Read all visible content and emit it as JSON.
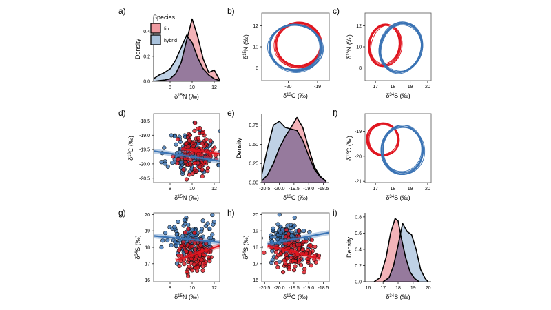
{
  "colors": {
    "fin": "#e0151f",
    "hybrid": "#3a73b4",
    "fin_fill": "#ef9aa0",
    "hybrid_fill": "#a9c2dc",
    "overlap": "#8f6f93"
  },
  "legend": {
    "title": "Species",
    "items": [
      {
        "key": "fin",
        "label": "fin"
      },
      {
        "key": "hybrid",
        "label": "hybrid"
      }
    ]
  },
  "panels": {
    "a": {
      "label": "a)",
      "xlabel": [
        "δ",
        "15",
        "N (‰)"
      ],
      "ylabel": "Density",
      "xticks": [
        "8",
        "10",
        "12"
      ],
      "yticks": [
        "0.0",
        "0.2",
        "0.4"
      ]
    },
    "b": {
      "label": "b)",
      "xlabel": [
        "δ",
        "13",
        "C (‰)"
      ],
      "ylabel": [
        "δ",
        "15",
        "N (‰)"
      ],
      "xticks": [
        "-20",
        "-19"
      ],
      "yticks": [
        "8",
        "10",
        "12"
      ]
    },
    "c": {
      "label": "c)",
      "xlabel": [
        "δ",
        "34",
        "S (‰)"
      ],
      "ylabel": [
        "δ",
        "15",
        "N (‰)"
      ],
      "xticks": [
        "17",
        "18",
        "19",
        "20"
      ],
      "yticks": [
        "8",
        "10",
        "12"
      ]
    },
    "d": {
      "label": "d)",
      "xlabel": [
        "δ",
        "15",
        "N (‰)"
      ],
      "ylabel": [
        "δ",
        "13",
        "C (‰)"
      ],
      "xticks": [
        "8",
        "10",
        "12"
      ],
      "yticks": [
        "-18.5",
        "-19.0",
        "-19.5",
        "-20.0",
        "-20.5"
      ]
    },
    "e": {
      "label": "e)",
      "xlabel": [
        "δ",
        "13",
        "C (‰)"
      ],
      "ylabel": "Density",
      "xticks": [
        "-20.5",
        "-20.0",
        "-19.5",
        "-19.0",
        "-18.5"
      ],
      "yticks": [
        "0.00",
        "0.25",
        "0.50",
        "0.75"
      ]
    },
    "f": {
      "label": "f)",
      "xlabel": [
        "δ",
        "34",
        "S (‰)"
      ],
      "ylabel": [
        "δ",
        "13",
        "C (‰)"
      ],
      "xticks": [
        "17",
        "18",
        "19",
        "20"
      ],
      "yticks": [
        "-19",
        "-20",
        "-21"
      ]
    },
    "g": {
      "label": "g)",
      "xlabel": [
        "δ",
        "15",
        "N (‰)"
      ],
      "ylabel": [
        "δ",
        "34",
        "S (‰)"
      ],
      "xticks": [
        "8",
        "10",
        "12"
      ],
      "yticks": [
        "16",
        "17",
        "18",
        "19",
        "20"
      ]
    },
    "h": {
      "label": "h)",
      "xlabel": [
        "δ",
        "13",
        "C (‰)"
      ],
      "ylabel": [
        "δ",
        "34",
        "S (‰)"
      ],
      "xticks": [
        "-20.5",
        "-20.0",
        "-19.5",
        "-19.0",
        "-18.5"
      ],
      "yticks": [
        "16",
        "17",
        "18",
        "19",
        "20"
      ]
    },
    "i": {
      "label": "i)",
      "xlabel": [
        "δ",
        "34",
        "S (‰)"
      ],
      "ylabel": "Density",
      "xticks": [
        "16",
        "17",
        "18",
        "19",
        "20"
      ],
      "yticks": [
        "0.0",
        "0.2",
        "0.4",
        "0.6",
        "0.8"
      ]
    }
  },
  "chart_data": [
    {
      "panel": "a",
      "type": "area",
      "xlim": [
        6.5,
        12.5
      ],
      "ylim": [
        0,
        0.52
      ],
      "series": [
        {
          "name": "fin",
          "x": [
            6.5,
            7,
            7.5,
            8,
            8.5,
            9,
            9.5,
            10,
            10.5,
            11,
            11.5,
            12,
            12.5
          ],
          "values": [
            0,
            0.005,
            0.01,
            0.02,
            0.06,
            0.15,
            0.33,
            0.5,
            0.36,
            0.18,
            0.07,
            0.09,
            0.01
          ]
        },
        {
          "name": "hybrid",
          "x": [
            6.5,
            7,
            7.5,
            8,
            8.5,
            9,
            9.5,
            10,
            10.5,
            11,
            11.5,
            12,
            12.5
          ],
          "values": [
            0.02,
            0.05,
            0.07,
            0.1,
            0.17,
            0.27,
            0.37,
            0.31,
            0.19,
            0.1,
            0.05,
            0.02,
            0.005
          ]
        }
      ]
    },
    {
      "panel": "b",
      "type": "ellipse",
      "xlim": [
        -20.9,
        -18.6
      ],
      "ylim": [
        6.8,
        13.2
      ],
      "series": [
        {
          "name": "fin",
          "center": [
            -19.65,
            10.2
          ],
          "rx": 0.8,
          "ry": 2.1,
          "tilt": -8
        },
        {
          "name": "hybrid",
          "center": [
            -19.75,
            9.9
          ],
          "rx": 0.9,
          "ry": 2.2,
          "tilt": 5
        }
      ]
    },
    {
      "panel": "c",
      "type": "ellipse",
      "xlim": [
        16.4,
        20.2
      ],
      "ylim": [
        6.8,
        13.2
      ],
      "series": [
        {
          "name": "fin",
          "center": [
            17.55,
            10.2
          ],
          "rx": 0.9,
          "ry": 2.0,
          "tilt": 10
        },
        {
          "name": "hybrid",
          "center": [
            18.45,
            9.9
          ],
          "rx": 1.2,
          "ry": 2.4,
          "tilt": 18
        }
      ]
    },
    {
      "panel": "d",
      "type": "scatter",
      "xlim": [
        6.5,
        12.5
      ],
      "ylim": [
        -20.65,
        -18.25
      ],
      "series": [
        {
          "name": "hybrid",
          "seed": 11,
          "n": 130,
          "x_mean": 10.0,
          "x_sd": 1.1,
          "y_mean": -19.65,
          "y_sd": 0.4,
          "trend": [
            [
              6.5,
              -19.55
            ],
            [
              12.5,
              -19.9
            ]
          ]
        },
        {
          "name": "fin",
          "seed": 23,
          "n": 120,
          "x_mean": 10.3,
          "x_sd": 0.75,
          "y_mean": -19.65,
          "y_sd": 0.35,
          "trend": [
            [
              9,
              -19.48
            ],
            [
              12.5,
              -19.65
            ]
          ]
        }
      ]
    },
    {
      "panel": "e",
      "type": "area",
      "xlim": [
        -20.6,
        -18.3
      ],
      "ylim": [
        0,
        0.9
      ],
      "series": [
        {
          "name": "fin",
          "x": [
            -20.6,
            -20.4,
            -20.2,
            -20.0,
            -19.8,
            -19.6,
            -19.4,
            -19.2,
            -19.0,
            -18.8,
            -18.6,
            -18.4
          ],
          "values": [
            0.02,
            0.1,
            0.25,
            0.45,
            0.6,
            0.72,
            0.85,
            0.72,
            0.45,
            0.2,
            0.08,
            0.01
          ]
        },
        {
          "name": "hybrid",
          "x": [
            -20.6,
            -20.4,
            -20.2,
            -20.0,
            -19.8,
            -19.6,
            -19.4,
            -19.2,
            -19.0,
            -18.8,
            -18.6,
            -18.4
          ],
          "values": [
            0.1,
            0.45,
            0.75,
            0.8,
            0.72,
            0.7,
            0.68,
            0.55,
            0.35,
            0.17,
            0.07,
            0.02
          ]
        }
      ]
    },
    {
      "panel": "f",
      "type": "ellipse",
      "xlim": [
        16.4,
        20.2
      ],
      "ylim": [
        -21.05,
        -18.3
      ],
      "series": [
        {
          "name": "fin",
          "center": [
            17.45,
            -19.32
          ],
          "rx": 0.9,
          "ry": 0.65,
          "tilt": -15
        },
        {
          "name": "hybrid",
          "center": [
            18.55,
            -19.75
          ],
          "rx": 1.2,
          "ry": 0.95,
          "tilt": 0
        }
      ]
    },
    {
      "panel": "g",
      "type": "scatter",
      "xlim": [
        6.5,
        12.5
      ],
      "ylim": [
        15.9,
        20.1
      ],
      "series": [
        {
          "name": "hybrid",
          "seed": 31,
          "n": 130,
          "x_mean": 9.9,
          "x_sd": 1.2,
          "y_mean": 18.5,
          "y_sd": 0.6,
          "trend": [
            [
              6.5,
              18.7
            ],
            [
              12.5,
              18.3
            ]
          ]
        },
        {
          "name": "fin",
          "seed": 47,
          "n": 120,
          "x_mean": 10.3,
          "x_sd": 0.8,
          "y_mean": 17.5,
          "y_sd": 0.55,
          "trend": [
            [
              8.5,
              17.2
            ],
            [
              12.5,
              18.1
            ]
          ]
        }
      ]
    },
    {
      "panel": "h",
      "type": "scatter",
      "xlim": [
        -20.6,
        -18.3
      ],
      "ylim": [
        15.9,
        20.1
      ],
      "series": [
        {
          "name": "hybrid",
          "seed": 53,
          "n": 130,
          "x_mean": -19.75,
          "x_sd": 0.4,
          "y_mean": 18.5,
          "y_sd": 0.6,
          "trend": [
            [
              -20.4,
              18.2
            ],
            [
              -18.3,
              18.9
            ]
          ]
        },
        {
          "name": "fin",
          "seed": 67,
          "n": 120,
          "x_mean": -19.5,
          "x_sd": 0.35,
          "y_mean": 17.6,
          "y_sd": 0.55,
          "trend": [
            [
              -20.4,
              18.1
            ],
            [
              -18.6,
              17.3
            ]
          ]
        }
      ]
    },
    {
      "panel": "i",
      "type": "area",
      "xlim": [
        15.8,
        20.2
      ],
      "ylim": [
        0,
        0.85
      ],
      "series": [
        {
          "name": "fin",
          "x": [
            16.4,
            16.8,
            17.2,
            17.5,
            17.8,
            18.0,
            18.2,
            18.5,
            18.8,
            19.1,
            19.4
          ],
          "values": [
            0.0,
            0.05,
            0.3,
            0.6,
            0.78,
            0.75,
            0.55,
            0.3,
            0.12,
            0.04,
            0.0
          ]
        },
        {
          "name": "hybrid",
          "x": [
            17.0,
            17.4,
            17.7,
            18.0,
            18.3,
            18.6,
            18.9,
            19.2,
            19.5,
            19.8,
            20.0
          ],
          "values": [
            0.0,
            0.05,
            0.2,
            0.45,
            0.72,
            0.62,
            0.58,
            0.4,
            0.15,
            0.04,
            0.0
          ]
        }
      ]
    }
  ]
}
